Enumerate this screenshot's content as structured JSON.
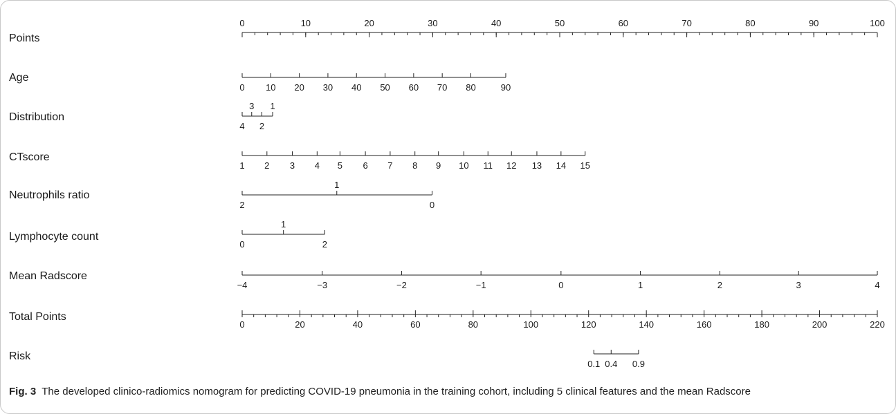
{
  "chart_data": {
    "type": "nomogram",
    "rows": [
      {
        "label": "Points",
        "ticks": [
          {
            "text": "0",
            "v": 0
          },
          {
            "text": "10",
            "v": 10
          },
          {
            "text": "20",
            "v": 20
          },
          {
            "text": "30",
            "v": 30
          },
          {
            "text": "40",
            "v": 40
          },
          {
            "text": "50",
            "v": 50
          },
          {
            "text": "60",
            "v": 60
          },
          {
            "text": "70",
            "v": 70
          },
          {
            "text": "80",
            "v": 80
          },
          {
            "text": "90",
            "v": 90
          },
          {
            "text": "100",
            "v": 100
          }
        ]
      },
      {
        "label": "Age",
        "ticks": [
          {
            "text": "0",
            "v": 0
          },
          {
            "text": "10",
            "v": 4.5
          },
          {
            "text": "20",
            "v": 9
          },
          {
            "text": "30",
            "v": 13.5
          },
          {
            "text": "40",
            "v": 18
          },
          {
            "text": "50",
            "v": 22.5
          },
          {
            "text": "60",
            "v": 27
          },
          {
            "text": "70",
            "v": 31.5
          },
          {
            "text": "80",
            "v": 36
          },
          {
            "text": "90",
            "v": 41.5
          }
        ]
      },
      {
        "label": "Distribution",
        "ticks": [
          {
            "text": "4",
            "v": 0,
            "side": "below"
          },
          {
            "text": "3",
            "v": 1.5,
            "side": "above"
          },
          {
            "text": "2",
            "v": 3.1,
            "side": "below"
          },
          {
            "text": "1",
            "v": 4.8,
            "side": "above"
          }
        ]
      },
      {
        "label": "CTscore",
        "ticks": [
          {
            "text": "1",
            "v": 0
          },
          {
            "text": "2",
            "v": 3.9
          },
          {
            "text": "3",
            "v": 7.9
          },
          {
            "text": "4",
            "v": 11.8
          },
          {
            "text": "5",
            "v": 15.4
          },
          {
            "text": "6",
            "v": 19.4
          },
          {
            "text": "7",
            "v": 23.3
          },
          {
            "text": "8",
            "v": 27.2
          },
          {
            "text": "9",
            "v": 30.9
          },
          {
            "text": "10",
            "v": 34.9
          },
          {
            "text": "11",
            "v": 38.7
          },
          {
            "text": "12",
            "v": 42.4
          },
          {
            "text": "13",
            "v": 46.4
          },
          {
            "text": "14",
            "v": 50.2
          },
          {
            "text": "15",
            "v": 54.0
          }
        ]
      },
      {
        "label": "Neutrophils ratio",
        "ticks": [
          {
            "text": "2",
            "v": 0,
            "side": "below"
          },
          {
            "text": "1",
            "v": 14.9,
            "side": "above"
          },
          {
            "text": "0",
            "v": 29.9,
            "side": "below"
          }
        ]
      },
      {
        "label": "Lymphocyte count",
        "ticks": [
          {
            "text": "0",
            "v": 0,
            "side": "below"
          },
          {
            "text": "1",
            "v": 6.5,
            "side": "above"
          },
          {
            "text": "2",
            "v": 13.0,
            "side": "below"
          }
        ]
      },
      {
        "label": "Mean Radscore",
        "ticks": [
          {
            "text": "−4",
            "v": 0
          },
          {
            "text": "−3",
            "v": 12.6
          },
          {
            "text": "−2",
            "v": 25.1
          },
          {
            "text": "−1",
            "v": 37.6
          },
          {
            "text": "0",
            "v": 50.2
          },
          {
            "text": "1",
            "v": 62.7
          },
          {
            "text": "2",
            "v": 75.2
          },
          {
            "text": "3",
            "v": 87.6
          },
          {
            "text": "4",
            "v": 100
          }
        ]
      },
      {
        "label": "Total Points",
        "ticks": [
          {
            "text": "0",
            "v": 0
          },
          {
            "text": "20",
            "v": 20
          },
          {
            "text": "40",
            "v": 40
          },
          {
            "text": "60",
            "v": 60
          },
          {
            "text": "80",
            "v": 80
          },
          {
            "text": "100",
            "v": 100
          },
          {
            "text": "120",
            "v": 120
          },
          {
            "text": "140",
            "v": 140
          },
          {
            "text": "160",
            "v": 160
          },
          {
            "text": "180",
            "v": 180
          },
          {
            "text": "200",
            "v": 200
          },
          {
            "text": "220",
            "v": 220
          }
        ]
      },
      {
        "label": "Risk",
        "ticks": [
          {
            "text": "0.1",
            "v": 121.8
          },
          {
            "text": "0.4",
            "v": 127.8
          },
          {
            "text": "0.9",
            "v": 137.3
          }
        ]
      }
    ]
  },
  "caption": {
    "fig": "Fig. 3",
    "text": "The developed clinico-radiomics nomogram for predicting COVID-19 pneumonia in the training cohort, including 5 clinical features and the mean Radscore"
  }
}
